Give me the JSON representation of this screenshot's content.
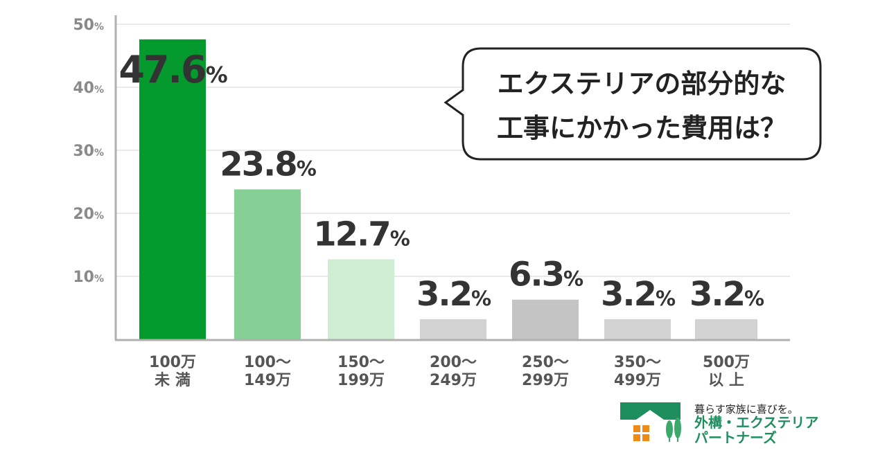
{
  "chart_data": {
    "type": "bar",
    "title": "",
    "xlabel": "",
    "ylabel": "",
    "ylim": [
      0,
      50
    ],
    "yticks": [
      10,
      20,
      30,
      40,
      50
    ],
    "ytick_suffix": "%",
    "grid": true,
    "categories": [
      [
        "100万",
        "未 満"
      ],
      [
        "100～",
        "149万"
      ],
      [
        "150～",
        "199万"
      ],
      [
        "200～",
        "249万"
      ],
      [
        "250～",
        "299万"
      ],
      [
        "350～",
        "499万"
      ],
      [
        "500万",
        "以 上"
      ]
    ],
    "values": [
      47.6,
      23.8,
      12.7,
      3.2,
      6.3,
      3.2,
      3.2
    ],
    "value_labels": [
      "47.6",
      "23.8",
      "12.7",
      "3.2",
      "6.3",
      "3.2",
      "3.2"
    ],
    "value_suffix": "%",
    "bar_colors": [
      "#049a2d",
      "#87d095",
      "#cfedd2",
      "#d2d2d2",
      "#c4c4c4",
      "#d2d2d2",
      "#d2d2d2"
    ]
  },
  "callout": {
    "lines": [
      "エクステリアの部分的な",
      "工事にかかった費用は？"
    ]
  },
  "logo": {
    "tagline": "暮らす家族に喜びを。",
    "name_line1": "外構・エクステリア",
    "name_line2": "パートナーズ",
    "colors": {
      "roof": "#1e8e5e",
      "window": "#ef8a17",
      "trees": "#3aa96b"
    }
  },
  "colors": {
    "axis": "#b0b0b0",
    "grid": "#e2e2e2",
    "tick_text": "#8a8a8a",
    "value_text": "#333333"
  }
}
